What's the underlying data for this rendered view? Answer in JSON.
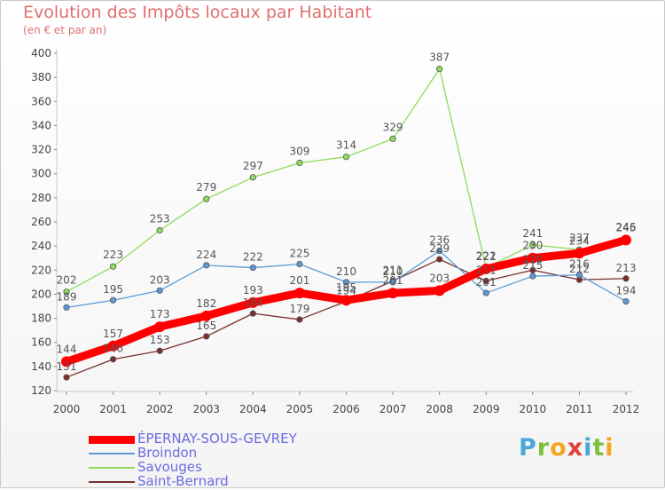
{
  "header": {
    "title": "Evolution des Impôts locaux par Habitant",
    "subtitle": "(en € et par an)"
  },
  "logo": {
    "text": "Proxiti",
    "letters": [
      {
        "ch": "P",
        "color": "#4aa7d9"
      },
      {
        "ch": "r",
        "color": "#7cbf3a"
      },
      {
        "ch": "o",
        "color": "#f4a521"
      },
      {
        "ch": "x",
        "color": "#e0403a"
      },
      {
        "ch": "i",
        "color": "#4aa7d9"
      },
      {
        "ch": "t",
        "color": "#7cbf3a"
      },
      {
        "ch": "i",
        "color": "#f4a521"
      }
    ]
  },
  "chart_data": {
    "type": "line",
    "title": "Evolution des Impôts locaux par Habitant",
    "subtitle": "(en € et par an)",
    "xlabel": "",
    "ylabel": "",
    "x": [
      "2000",
      "2001",
      "2002",
      "2003",
      "2004",
      "2005",
      "2006",
      "2007",
      "2008",
      "2009",
      "2010",
      "2011",
      "2012"
    ],
    "ylim": [
      120,
      400
    ],
    "yticks": [
      120,
      140,
      160,
      180,
      200,
      220,
      240,
      260,
      280,
      300,
      320,
      340,
      360,
      380,
      400
    ],
    "grid": false,
    "legend_position": "bottom-left",
    "series": [
      {
        "name": "ÉPERNAY-SOUS-GEVREY",
        "color": "#ff0000",
        "values": [
          144,
          157,
          173,
          182,
          193,
          201,
          195,
          201,
          203,
          221,
          230,
          234,
          245
        ],
        "labels": [
          "144",
          "157",
          "173",
          "182",
          "193",
          "201",
          "195",
          "201",
          "203",
          "221",
          "230",
          "234",
          "245"
        ],
        "bold": true
      },
      {
        "name": "Broindon",
        "color": "#5b9bd5",
        "values": [
          189,
          195,
          203,
          224,
          222,
          225,
          210,
          210,
          236,
          201,
          215,
          216,
          194
        ],
        "labels": [
          "189",
          "195",
          "203",
          "224",
          "222",
          "225",
          "210",
          "210",
          "236",
          "201",
          "215",
          "216",
          "194"
        ]
      },
      {
        "name": "Savouges",
        "color": "#8fdc5a",
        "values": [
          202,
          223,
          253,
          279,
          297,
          309,
          314,
          329,
          387,
          222,
          241,
          237,
          246
        ],
        "labels": [
          "202",
          "223",
          "253",
          "279",
          "297",
          "309",
          "314",
          "329",
          "387",
          "222",
          "241",
          "237",
          "246"
        ]
      },
      {
        "name": "Saint-Bernard",
        "color": "#7a2e2e",
        "values": [
          131,
          146,
          153,
          165,
          184,
          179,
          194,
          211,
          229,
          211,
          220,
          212,
          213
        ],
        "labels": [
          "131",
          "146",
          "153",
          "165",
          "184",
          "179",
          "194",
          "211",
          "229",
          "211",
          "220",
          "212",
          "213"
        ]
      }
    ]
  }
}
